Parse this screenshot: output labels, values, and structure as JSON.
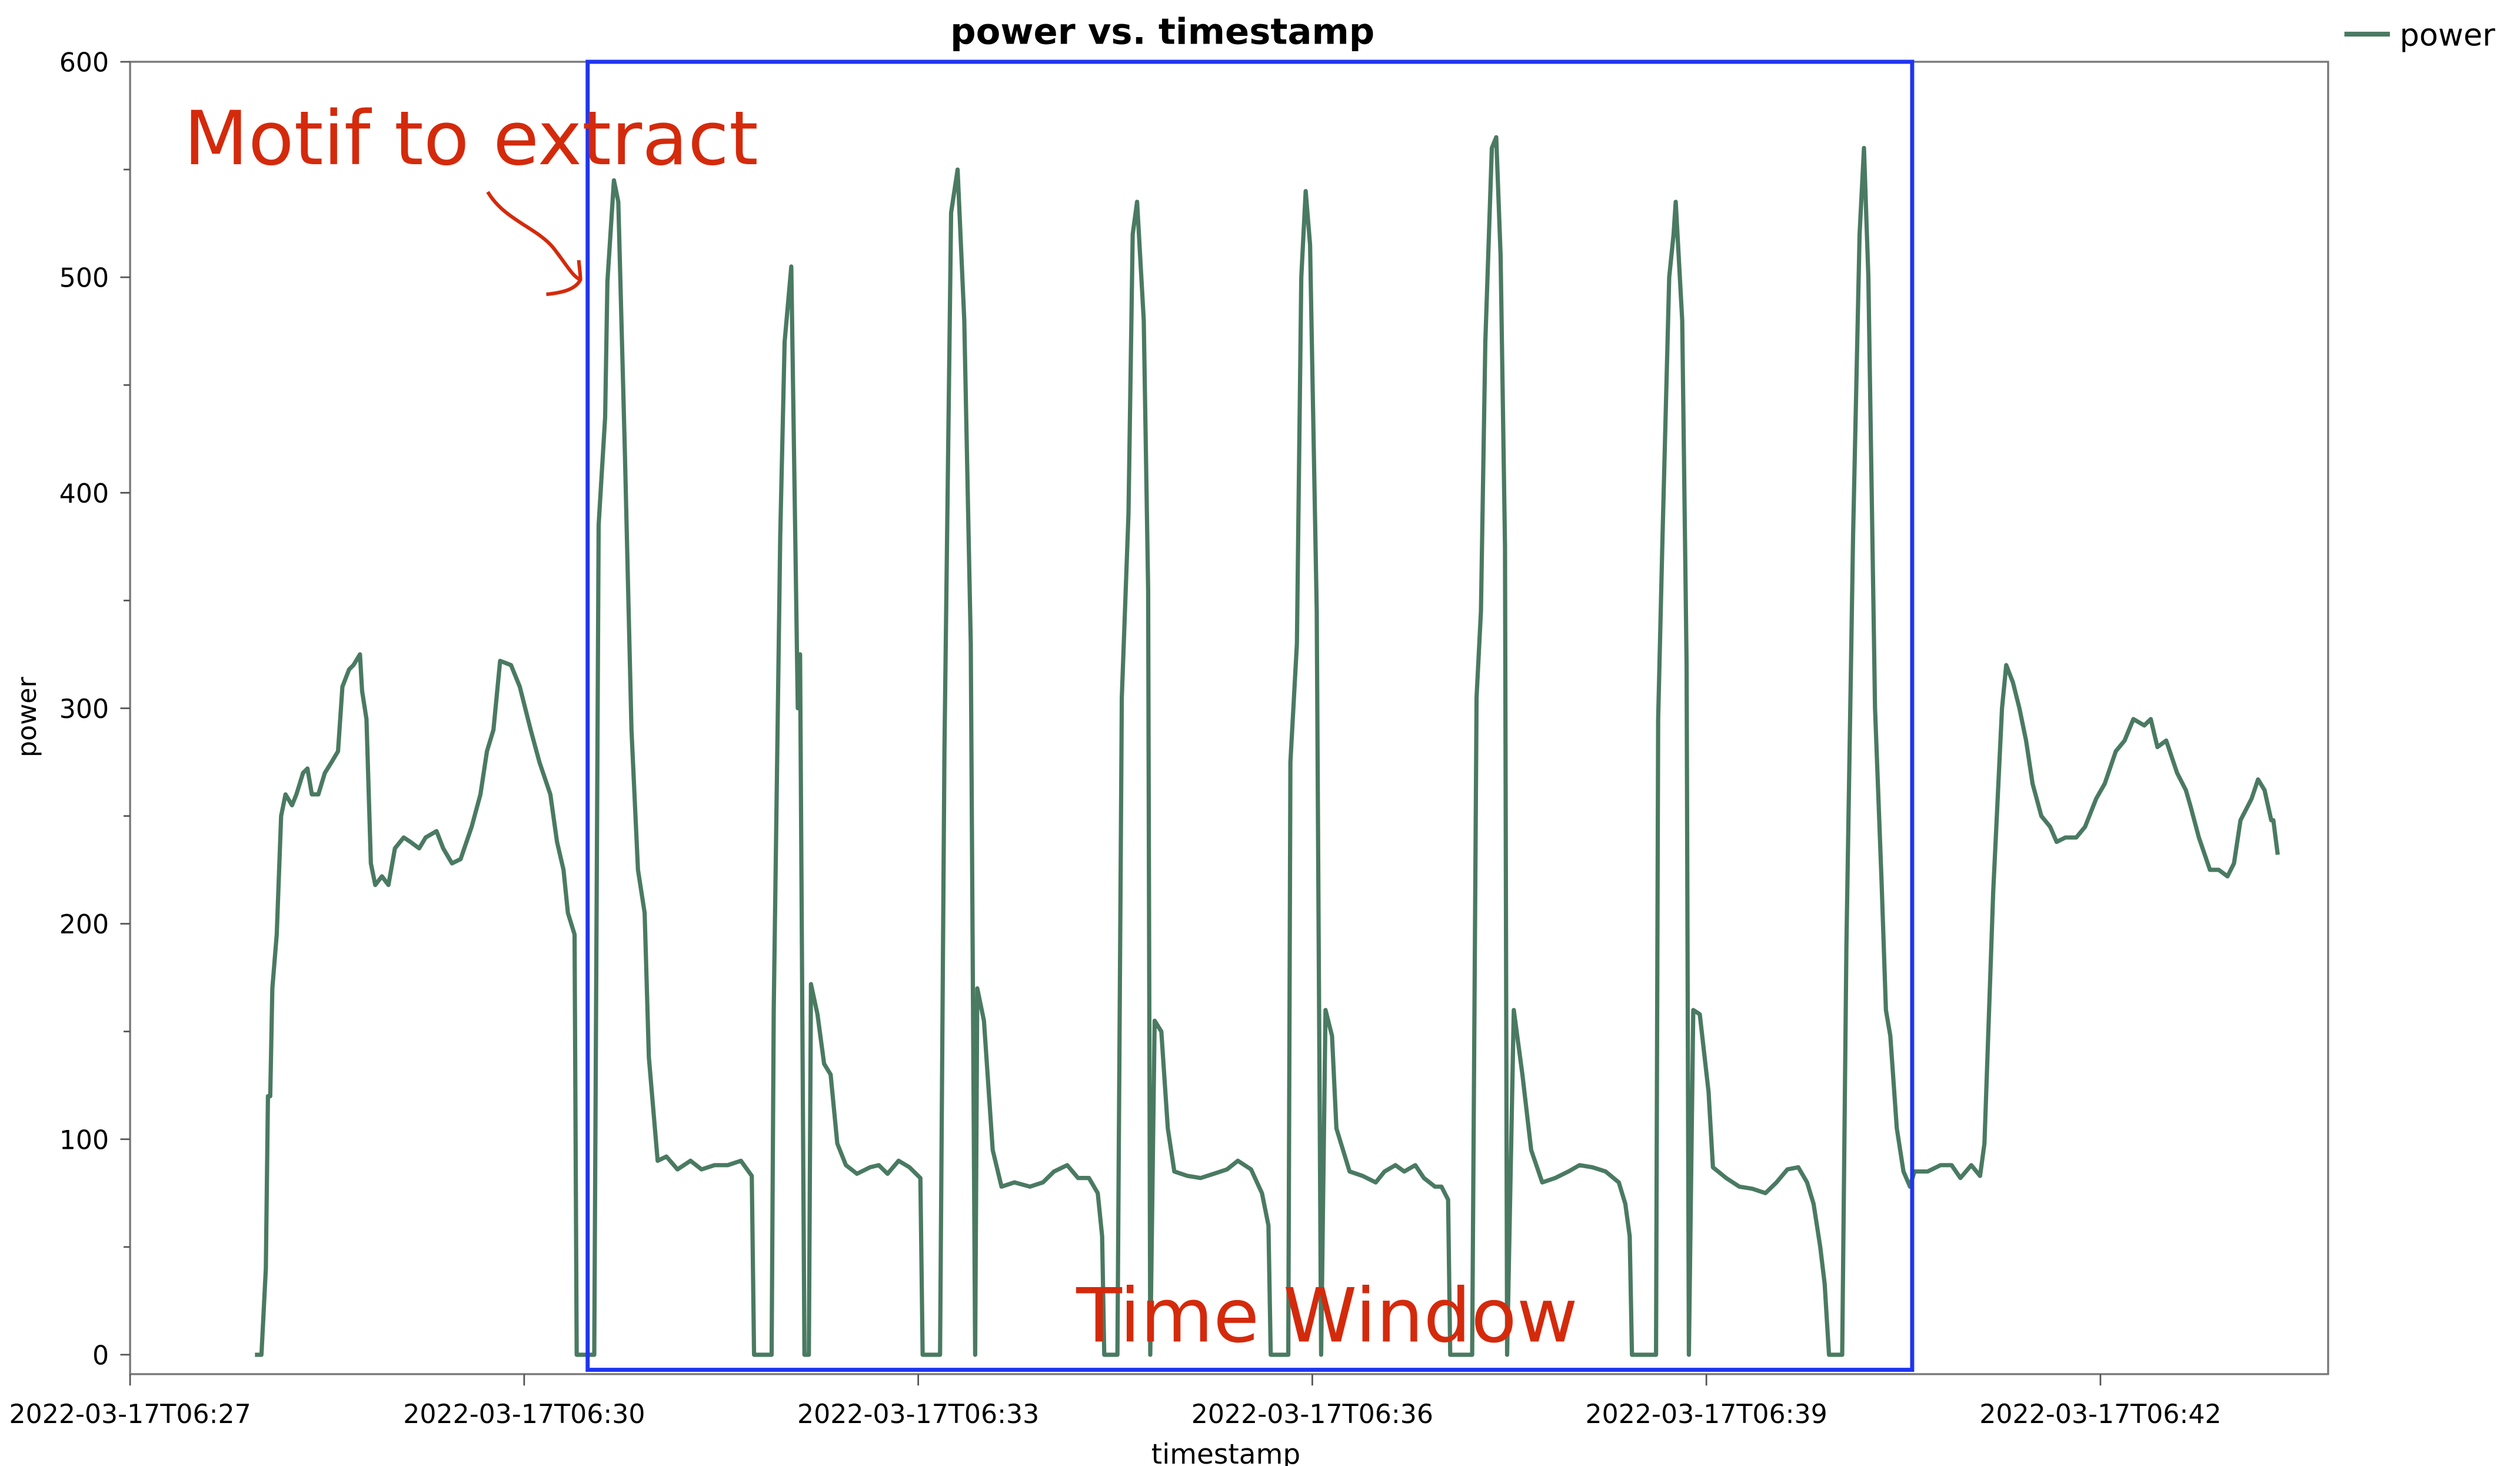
{
  "chart_data": {
    "type": "line",
    "title": "power vs. timestamp",
    "xlabel": "timestamp",
    "ylabel": "power",
    "date": "2022-03-17",
    "xlim": [
      "06:27:00",
      "06:43:44"
    ],
    "ylim": [
      -9,
      600
    ],
    "x_ticks": [
      "06:27:00",
      "06:30:00",
      "06:33:00",
      "06:36:00",
      "06:39:00",
      "06:42:00"
    ],
    "x_tick_labels": [
      "2022-03-17T06:27",
      "2022-03-17T06:30",
      "2022-03-17T06:33",
      "2022-03-17T06:36",
      "2022-03-17T06:39",
      "2022-03-17T06:42"
    ],
    "y_ticks": [
      0,
      100,
      200,
      300,
      400,
      500,
      600
    ],
    "y_minor_step": 50,
    "grid": false,
    "legend": {
      "position": "top-right",
      "entries": [
        "power"
      ]
    },
    "series": [
      {
        "name": "power",
        "color": "#4a7a62",
        "points": [
          [
            "06:27:57",
            0
          ],
          [
            "06:28:00",
            0
          ],
          [
            "06:28:02",
            40
          ],
          [
            "06:28:03",
            120
          ],
          [
            "06:28:04",
            120
          ],
          [
            "06:28:05",
            170
          ],
          [
            "06:28:07",
            195
          ],
          [
            "06:28:09",
            250
          ],
          [
            "06:28:11",
            260
          ],
          [
            "06:28:14",
            255
          ],
          [
            "06:28:16",
            260
          ],
          [
            "06:28:19",
            270
          ],
          [
            "06:28:21",
            272
          ],
          [
            "06:28:23",
            260
          ],
          [
            "06:28:26",
            260
          ],
          [
            "06:28:29",
            270
          ],
          [
            "06:28:32",
            275
          ],
          [
            "06:28:35",
            280
          ],
          [
            "06:28:37",
            310
          ],
          [
            "06:28:40",
            318
          ],
          [
            "06:28:42",
            320
          ],
          [
            "06:28:45",
            325
          ],
          [
            "06:28:46",
            308
          ],
          [
            "06:28:48",
            295
          ],
          [
            "06:28:50",
            228
          ],
          [
            "06:28:52",
            218
          ],
          [
            "06:28:55",
            222
          ],
          [
            "06:28:58",
            218
          ],
          [
            "06:29:01",
            235
          ],
          [
            "06:29:05",
            240
          ],
          [
            "06:29:08",
            238
          ],
          [
            "06:29:12",
            235
          ],
          [
            "06:29:15",
            240
          ],
          [
            "06:29:20",
            243
          ],
          [
            "06:29:23",
            235
          ],
          [
            "06:29:27",
            228
          ],
          [
            "06:29:31",
            230
          ],
          [
            "06:29:36",
            245
          ],
          [
            "06:29:40",
            260
          ],
          [
            "06:29:43",
            280
          ],
          [
            "06:29:46",
            290
          ],
          [
            "06:29:49",
            322
          ],
          [
            "06:29:54",
            320
          ],
          [
            "06:29:58",
            310
          ],
          [
            "06:30:03",
            290
          ],
          [
            "06:30:07",
            275
          ],
          [
            "06:30:12",
            260
          ],
          [
            "06:30:15",
            238
          ],
          [
            "06:30:18",
            225
          ],
          [
            "06:30:20",
            205
          ],
          [
            "06:30:23",
            195
          ],
          [
            "06:30:24",
            0
          ],
          [
            "06:30:32",
            0
          ],
          [
            "06:30:34",
            385
          ],
          [
            "06:30:37",
            435
          ],
          [
            "06:30:38",
            498
          ],
          [
            "06:30:41",
            545
          ],
          [
            "06:30:43",
            535
          ],
          [
            "06:30:46",
            420
          ],
          [
            "06:30:49",
            290
          ],
          [
            "06:30:52",
            225
          ],
          [
            "06:30:55",
            205
          ],
          [
            "06:30:57",
            138
          ],
          [
            "06:31:01",
            90
          ],
          [
            "06:31:05",
            92
          ],
          [
            "06:31:10",
            86
          ],
          [
            "06:31:16",
            90
          ],
          [
            "06:31:21",
            86
          ],
          [
            "06:31:27",
            88
          ],
          [
            "06:31:33",
            88
          ],
          [
            "06:31:39",
            90
          ],
          [
            "06:31:44",
            83
          ],
          [
            "06:31:45",
            0
          ],
          [
            "06:31:53",
            0
          ],
          [
            "06:31:54",
            160
          ],
          [
            "06:31:57",
            380
          ],
          [
            "06:31:59",
            470
          ],
          [
            "06:32:02",
            505
          ],
          [
            "06:32:05",
            300
          ],
          [
            "06:32:06",
            325
          ],
          [
            "06:32:08",
            0
          ],
          [
            "06:32:10",
            0
          ],
          [
            "06:32:11",
            172
          ],
          [
            "06:32:14",
            158
          ],
          [
            "06:32:17",
            135
          ],
          [
            "06:32:20",
            130
          ],
          [
            "06:32:23",
            98
          ],
          [
            "06:32:27",
            88
          ],
          [
            "06:32:32",
            84
          ],
          [
            "06:32:38",
            87
          ],
          [
            "06:32:42",
            88
          ],
          [
            "06:32:46",
            84
          ],
          [
            "06:32:51",
            90
          ],
          [
            "06:32:56",
            87
          ],
          [
            "06:33:01",
            82
          ],
          [
            "06:33:02",
            0
          ],
          [
            "06:33:10",
            0
          ],
          [
            "06:33:12",
            280
          ],
          [
            "06:33:15",
            530
          ],
          [
            "06:33:18",
            550
          ],
          [
            "06:33:21",
            480
          ],
          [
            "06:33:24",
            330
          ],
          [
            "06:33:26",
            0
          ],
          [
            "06:33:27",
            170
          ],
          [
            "06:33:30",
            155
          ],
          [
            "06:33:34",
            95
          ],
          [
            "06:33:38",
            78
          ],
          [
            "06:33:44",
            80
          ],
          [
            "06:33:51",
            78
          ],
          [
            "06:33:57",
            80
          ],
          [
            "06:34:02",
            85
          ],
          [
            "06:34:08",
            88
          ],
          [
            "06:34:13",
            82
          ],
          [
            "06:34:18",
            82
          ],
          [
            "06:34:22",
            75
          ],
          [
            "06:34:24",
            55
          ],
          [
            "06:34:25",
            0
          ],
          [
            "06:34:31",
            0
          ],
          [
            "06:34:33",
            305
          ],
          [
            "06:34:36",
            390
          ],
          [
            "06:34:38",
            520
          ],
          [
            "06:34:40",
            535
          ],
          [
            "06:34:43",
            480
          ],
          [
            "06:34:45",
            355
          ],
          [
            "06:34:46",
            0
          ],
          [
            "06:34:48",
            155
          ],
          [
            "06:34:51",
            150
          ],
          [
            "06:34:54",
            105
          ],
          [
            "06:34:57",
            85
          ],
          [
            "06:35:03",
            83
          ],
          [
            "06:35:09",
            82
          ],
          [
            "06:35:15",
            84
          ],
          [
            "06:35:21",
            86
          ],
          [
            "06:35:26",
            90
          ],
          [
            "06:35:32",
            86
          ],
          [
            "06:35:37",
            75
          ],
          [
            "06:35:40",
            60
          ],
          [
            "06:35:41",
            0
          ],
          [
            "06:35:49",
            0
          ],
          [
            "06:35:50",
            275
          ],
          [
            "06:35:53",
            330
          ],
          [
            "06:35:55",
            500
          ],
          [
            "06:35:57",
            540
          ],
          [
            "06:35:59",
            515
          ],
          [
            "06:36:02",
            345
          ],
          [
            "06:36:04",
            0
          ],
          [
            "06:36:06",
            160
          ],
          [
            "06:36:09",
            148
          ],
          [
            "06:36:11",
            105
          ],
          [
            "06:36:17",
            85
          ],
          [
            "06:36:23",
            83
          ],
          [
            "06:36:29",
            80
          ],
          [
            "06:36:33",
            85
          ],
          [
            "06:36:38",
            88
          ],
          [
            "06:36:42",
            85
          ],
          [
            "06:36:47",
            88
          ],
          [
            "06:36:51",
            82
          ],
          [
            "06:36:56",
            78
          ],
          [
            "06:36:59",
            78
          ],
          [
            "06:37:02",
            72
          ],
          [
            "06:37:03",
            0
          ],
          [
            "06:37:13",
            0
          ],
          [
            "06:37:15",
            305
          ],
          [
            "06:37:17",
            345
          ],
          [
            "06:37:19",
            470
          ],
          [
            "06:37:22",
            560
          ],
          [
            "06:37:24",
            565
          ],
          [
            "06:37:26",
            510
          ],
          [
            "06:37:28",
            375
          ],
          [
            "06:37:29",
            0
          ],
          [
            "06:37:32",
            160
          ],
          [
            "06:37:36",
            130
          ],
          [
            "06:37:40",
            95
          ],
          [
            "06:37:45",
            80
          ],
          [
            "06:37:51",
            82
          ],
          [
            "06:37:57",
            85
          ],
          [
            "06:38:02",
            88
          ],
          [
            "06:38:08",
            87
          ],
          [
            "06:38:14",
            85
          ],
          [
            "06:38:20",
            80
          ],
          [
            "06:38:23",
            70
          ],
          [
            "06:38:25",
            55
          ],
          [
            "06:38:26",
            0
          ],
          [
            "06:38:37",
            0
          ],
          [
            "06:38:38",
            295
          ],
          [
            "06:38:40",
            380
          ],
          [
            "06:38:43",
            500
          ],
          [
            "06:38:45",
            520
          ],
          [
            "06:38:46",
            535
          ],
          [
            "06:38:49",
            480
          ],
          [
            "06:38:51",
            320
          ],
          [
            "06:38:52",
            0
          ],
          [
            "06:38:54",
            160
          ],
          [
            "06:38:57",
            158
          ],
          [
            "06:39:01",
            122
          ],
          [
            "06:39:03",
            87
          ],
          [
            "06:39:09",
            82
          ],
          [
            "06:39:15",
            78
          ],
          [
            "06:39:21",
            77
          ],
          [
            "06:39:27",
            75
          ],
          [
            "06:39:32",
            80
          ],
          [
            "06:39:37",
            86
          ],
          [
            "06:39:42",
            87
          ],
          [
            "06:39:46",
            80
          ],
          [
            "06:39:49",
            70
          ],
          [
            "06:39:52",
            50
          ],
          [
            "06:39:54",
            33
          ],
          [
            "06:39:56",
            0
          ],
          [
            "06:40:02",
            0
          ],
          [
            "06:40:04",
            190
          ],
          [
            "06:40:07",
            380
          ],
          [
            "06:40:10",
            520
          ],
          [
            "06:40:12",
            560
          ],
          [
            "06:40:14",
            500
          ],
          [
            "06:40:17",
            300
          ],
          [
            "06:40:20",
            220
          ],
          [
            "06:40:22",
            160
          ],
          [
            "06:40:24",
            148
          ],
          [
            "06:40:27",
            105
          ],
          [
            "06:40:30",
            85
          ],
          [
            "06:40:33",
            78
          ],
          [
            "06:40:35",
            85
          ],
          [
            "06:40:41",
            85
          ],
          [
            "06:40:47",
            88
          ],
          [
            "06:40:52",
            88
          ],
          [
            "06:40:56",
            82
          ],
          [
            "06:41:01",
            88
          ],
          [
            "06:41:05",
            83
          ],
          [
            "06:41:07",
            98
          ],
          [
            "06:41:11",
            215
          ],
          [
            "06:41:15",
            300
          ],
          [
            "06:41:17",
            320
          ],
          [
            "06:41:20",
            312
          ],
          [
            "06:41:23",
            300
          ],
          [
            "06:41:26",
            285
          ],
          [
            "06:41:29",
            265
          ],
          [
            "06:41:33",
            250
          ],
          [
            "06:41:37",
            245
          ],
          [
            "06:41:40",
            238
          ],
          [
            "06:41:44",
            240
          ],
          [
            "06:41:49",
            240
          ],
          [
            "06:41:53",
            245
          ],
          [
            "06:41:58",
            258
          ],
          [
            "06:42:02",
            265
          ],
          [
            "06:42:07",
            280
          ],
          [
            "06:42:11",
            285
          ],
          [
            "06:42:15",
            295
          ],
          [
            "06:42:20",
            292
          ],
          [
            "06:42:23",
            295
          ],
          [
            "06:42:26",
            282
          ],
          [
            "06:42:30",
            285
          ],
          [
            "06:42:35",
            270
          ],
          [
            "06:42:39",
            262
          ],
          [
            "06:42:41",
            255
          ],
          [
            "06:42:45",
            240
          ],
          [
            "06:42:50",
            225
          ],
          [
            "06:42:54",
            225
          ],
          [
            "06:42:58",
            222
          ],
          [
            "06:43:01",
            228
          ],
          [
            "06:43:04",
            248
          ],
          [
            "06:43:09",
            258
          ],
          [
            "06:43:12",
            267
          ],
          [
            "06:43:15",
            262
          ],
          [
            "06:43:18",
            248
          ],
          [
            "06:43:19",
            248
          ],
          [
            "06:43:21",
            232
          ]
        ]
      }
    ],
    "annotations": [
      {
        "text": "Motif to extract",
        "color": "#d42a0c",
        "type": "text-with-arrow"
      },
      {
        "text": "Time Window",
        "color": "#d42a0c",
        "type": "text"
      }
    ],
    "highlight_box": {
      "color": "#1f35f0",
      "x_range": [
        "06:30:29",
        "06:40:34"
      ],
      "y_range": [
        -7,
        600
      ]
    }
  }
}
